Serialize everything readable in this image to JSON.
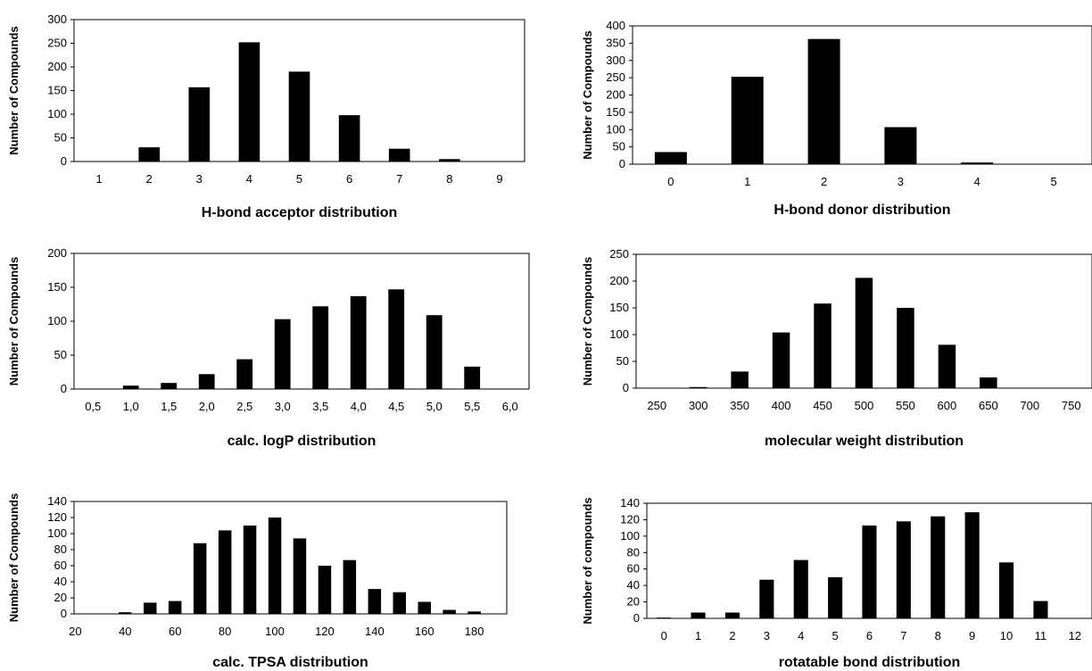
{
  "chart_data": [
    {
      "type": "bar",
      "xlabel": "H-bond acceptor distribution",
      "ylabel": "Number of Compounds",
      "ylim": [
        0,
        300
      ],
      "yticks": [
        0,
        50,
        100,
        150,
        200,
        250,
        300
      ],
      "categories": [
        "1",
        "2",
        "3",
        "4",
        "5",
        "6",
        "7",
        "8",
        "9"
      ],
      "values": [
        0,
        30,
        157,
        252,
        190,
        98,
        27,
        5,
        0
      ],
      "grid": false
    },
    {
      "type": "bar",
      "xlabel": "H-bond donor distribution",
      "ylabel": "Number of Compounds",
      "ylim": [
        0,
        400
      ],
      "yticks": [
        0,
        50,
        100,
        150,
        200,
        250,
        300,
        350,
        400
      ],
      "categories": [
        "0",
        "1",
        "2",
        "3",
        "4",
        "5"
      ],
      "values": [
        35,
        253,
        362,
        107,
        5,
        0
      ],
      "grid": false
    },
    {
      "type": "bar",
      "xlabel": "calc. logP distribution",
      "ylabel": "Number of Compounds",
      "ylim": [
        0,
        200
      ],
      "yticks": [
        0,
        50,
        100,
        150,
        200
      ],
      "categories": [
        "0,5",
        "1,0",
        "1,5",
        "2,0",
        "2,5",
        "3,0",
        "3,5",
        "4,0",
        "4,5",
        "5,0",
        "5,5",
        "6,0"
      ],
      "values": [
        0,
        5,
        9,
        22,
        44,
        103,
        122,
        137,
        147,
        109,
        33,
        0
      ],
      "grid": false
    },
    {
      "type": "bar",
      "xlabel": "molecular weight distribution",
      "ylabel": "Number of Compounds",
      "ylim": [
        0,
        250
      ],
      "yticks": [
        0,
        50,
        100,
        150,
        200,
        250
      ],
      "categories": [
        "250",
        "300",
        "350",
        "400",
        "450",
        "500",
        "550",
        "600",
        "650",
        "700",
        "750"
      ],
      "values": [
        0,
        2,
        31,
        104,
        158,
        206,
        150,
        81,
        20,
        0,
        0
      ],
      "grid": false
    },
    {
      "type": "bar",
      "xlabel": "calc. TPSA distribution",
      "ylabel": "Number of Compounds",
      "ylim": [
        0,
        140
      ],
      "yticks": [
        0,
        20,
        40,
        60,
        80,
        100,
        120,
        140
      ],
      "categories": [
        "20",
        "30",
        "40",
        "50",
        "60",
        "70",
        "80",
        "90",
        "100",
        "110",
        "120",
        "130",
        "140",
        "150",
        "160",
        "170",
        "180"
      ],
      "tick_labels": [
        "20",
        "40",
        "60",
        "80",
        "100",
        "120",
        "140",
        "160",
        "180"
      ],
      "values": [
        0,
        0,
        2,
        14,
        16,
        88,
        104,
        110,
        120,
        94,
        60,
        67,
        31,
        27,
        15,
        5,
        3
      ],
      "grid": false
    },
    {
      "type": "bar",
      "xlabel": "rotatable bond distribution",
      "ylabel": "Number of compounds",
      "ylim": [
        0,
        140
      ],
      "yticks": [
        0,
        20,
        40,
        60,
        80,
        100,
        120,
        140
      ],
      "categories": [
        "0",
        "1",
        "2",
        "3",
        "4",
        "5",
        "6",
        "7",
        "8",
        "9",
        "10",
        "11",
        "12"
      ],
      "values": [
        1,
        7,
        7,
        47,
        71,
        50,
        113,
        118,
        124,
        129,
        68,
        21,
        0
      ],
      "grid": false
    }
  ]
}
